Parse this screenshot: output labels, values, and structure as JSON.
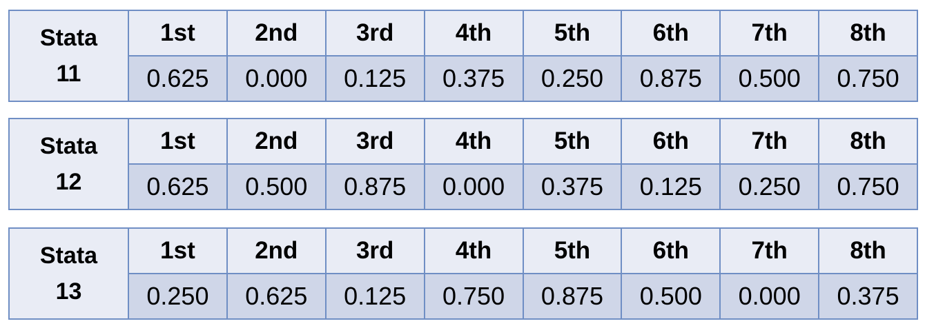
{
  "tables": [
    {
      "label_line1": "Stata",
      "label_line2": "11",
      "headers": [
        "1st",
        "2nd",
        "3rd",
        "4th",
        "5th",
        "6th",
        "7th",
        "8th"
      ],
      "values": [
        "0.625",
        "0.000",
        "0.125",
        "0.375",
        "0.250",
        "0.875",
        "0.500",
        "0.750"
      ]
    },
    {
      "label_line1": "Stata",
      "label_line2": "12",
      "headers": [
        "1st",
        "2nd",
        "3rd",
        "4th",
        "5th",
        "6th",
        "7th",
        "8th"
      ],
      "values": [
        "0.625",
        "0.500",
        "0.875",
        "0.000",
        "0.375",
        "0.125",
        "0.250",
        "0.750"
      ]
    },
    {
      "label_line1": "Stata",
      "label_line2": "13",
      "headers": [
        "1st",
        "2nd",
        "3rd",
        "4th",
        "5th",
        "6th",
        "7th",
        "8th"
      ],
      "values": [
        "0.250",
        "0.625",
        "0.125",
        "0.750",
        "0.875",
        "0.500",
        "0.000",
        "0.375"
      ]
    }
  ]
}
